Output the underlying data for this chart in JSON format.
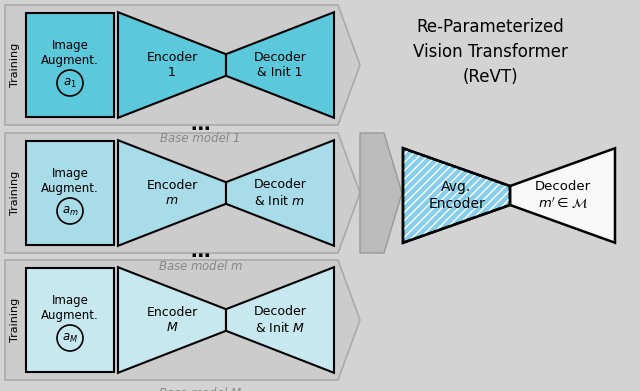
{
  "bg_color": "#d3d3d3",
  "row1_img_color": "#5bc8dc",
  "row1_bow_color": "#5bc8dc",
  "row2_img_color": "#a8dce8",
  "row2_bow_color": "#a8dce8",
  "row3_img_color": "#c8e8f0",
  "row3_bow_color": "#c8e8f0",
  "revt_left_color": "#87ceeb",
  "revt_right_color": "#f8f8f8",
  "white": "#ffffff",
  "arrow_color": "#c0c0c0",
  "arrow_edge": "#aaaaaa",
  "panel_arrow_color": "#cccccc",
  "panel_arrow_edge": "#aaaaaa",
  "title_text": "Re-Parameterized\nVision Transformer\n(ReVT)",
  "enc_labels": [
    "Encoder\n1",
    "Encoder\n$m$",
    "Encoder\n$M$"
  ],
  "dec_labels": [
    "Decoder\n& Init 1",
    "Decoder\n& Init $m$",
    "Decoder\n& Init $M$"
  ],
  "img_sublabels": [
    "$a_1$",
    "$a_m$",
    "$a_M$"
  ],
  "base_labels": [
    "Base model 1",
    "Base model $m$",
    "Base model $M$"
  ],
  "revt_left_label": "Avg.\nEncoder",
  "revt_right_label": "Decoder\n$m' \\in \\mathcal{M}$",
  "figsize": [
    6.4,
    3.91
  ],
  "dpi": 100
}
